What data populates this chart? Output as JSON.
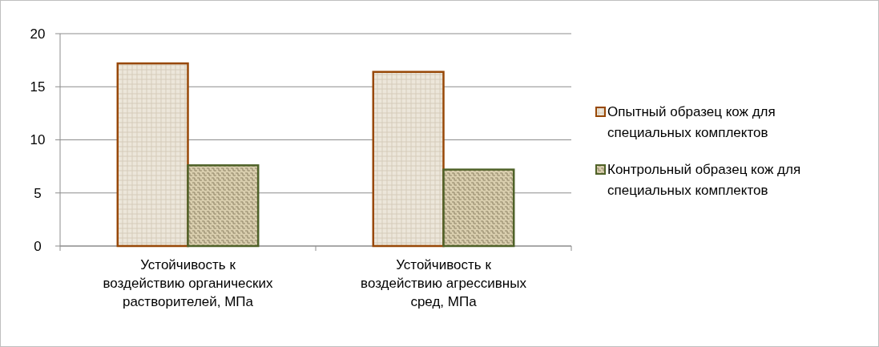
{
  "chart_data": {
    "type": "bar",
    "categories": [
      "Устойчивость к воздействию органических растворителей, МПа",
      "Устойчивость к воздействию агрессивных сред, МПа"
    ],
    "series": [
      {
        "name": "Опытный образец кож для специальных комплектов",
        "color": "#984807",
        "values": [
          17.2,
          16.4
        ]
      },
      {
        "name": "Контрольный образец кож для специальных комплектов",
        "color": "#4f6228",
        "values": [
          7.6,
          7.2
        ]
      }
    ],
    "ylim": [
      0,
      20
    ],
    "yticks": [
      0,
      5,
      10,
      15,
      20
    ],
    "grid": "y",
    "legend": "right"
  }
}
